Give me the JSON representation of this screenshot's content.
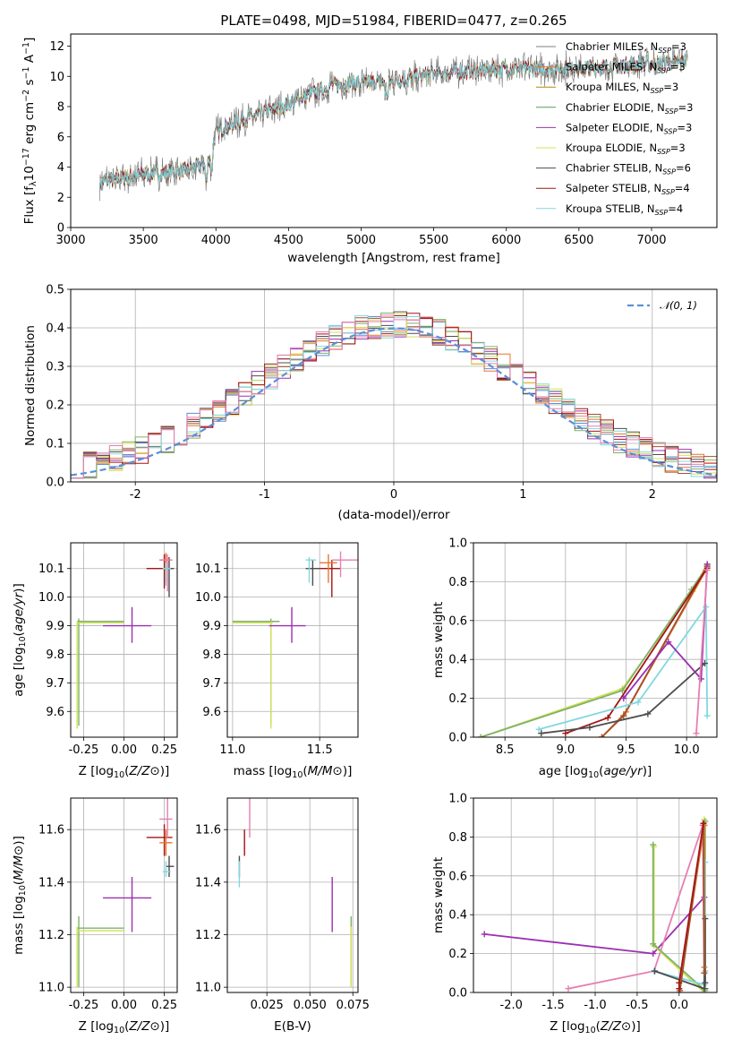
{
  "title": "PLATE=0498, MJD=51984, FIBERID=0477, z=0.265",
  "series": [
    {
      "name": "Chabrier MILES",
      "nssp": "3",
      "color": "#7f7f7f"
    },
    {
      "name": "Salpeter MILES",
      "nssp": "3",
      "color": "#e8772e"
    },
    {
      "name": "Kroupa MILES",
      "nssp": "3",
      "color": "#b8860b"
    },
    {
      "name": "Chabrier ELODIE",
      "nssp": "3",
      "color": "#5a9a5a"
    },
    {
      "name": "Salpeter ELODIE",
      "nssp": "3",
      "color": "#9b30b0"
    },
    {
      "name": "Kroupa ELODIE",
      "nssp": "3",
      "color": "#d4e157"
    },
    {
      "name": "Chabrier STELIB",
      "nssp": "6",
      "color": "#4d4d4d"
    },
    {
      "name": "Salpeter STELIB",
      "nssp": "4",
      "color": "#a31515"
    },
    {
      "name": "Kroupa STELIB",
      "nssp": "4",
      "color": "#80d8e0"
    }
  ],
  "chart_data": [
    {
      "type": "line",
      "id": "spectrum",
      "title": "PLATE=0498, MJD=51984, FIBERID=0477, z=0.265",
      "xlabel": "wavelength [Angstrom, rest frame]",
      "ylabel": "Flux [f_λ 10^-17 erg cm^-2 s^-1 A^-1]",
      "xlim": [
        3000,
        7450
      ],
      "ylim": [
        0,
        12.8
      ],
      "xticks": [
        3000,
        3500,
        4000,
        4500,
        5000,
        5500,
        6000,
        6500,
        7000
      ],
      "yticks": [
        0,
        2,
        4,
        6,
        8,
        10,
        12
      ],
      "legend": "top-right",
      "grid": false,
      "continuum": {
        "x": [
          3200,
          3500,
          3800,
          3950,
          4000,
          4200,
          4400,
          4600,
          4800,
          5000,
          5200,
          5500,
          5800,
          6000,
          6300,
          6600,
          6900,
          7250
        ],
        "y": [
          3.0,
          3.5,
          3.8,
          4.3,
          6.3,
          7.2,
          7.8,
          8.6,
          9.4,
          9.6,
          9.6,
          10.2,
          10.4,
          10.5,
          10.5,
          10.6,
          10.8,
          11.0
        ]
      }
    },
    {
      "type": "histogram",
      "id": "residuals",
      "xlabel": "(data-model)/error",
      "ylabel": "Normed distribution",
      "xlim": [
        -2.5,
        2.5
      ],
      "ylim": [
        0,
        0.5
      ],
      "xticks": [
        -2,
        -1,
        0,
        1,
        2
      ],
      "yticks": [
        0.0,
        0.1,
        0.2,
        0.3,
        0.4,
        0.5
      ],
      "bin_width": 0.1,
      "grid": true,
      "legend": "top-right",
      "reference_label": "𝒩(0, 1)",
      "reference_color": "#5b8fd9",
      "hist_colors": [
        "#5b8fd9",
        "#e8772e",
        "#7fb26a",
        "#a0522d",
        "#9b30b0",
        "#4d4d4d",
        "#d4e157",
        "#a31515",
        "#80d8e0",
        "#e67fb2"
      ]
    },
    {
      "type": "scatter",
      "id": "age-vs-Z",
      "xlabel": "Z [log10(Z/Z⊙)]",
      "ylabel": "age [log10(age/yr)]",
      "xlim": [
        -0.33,
        0.33
      ],
      "ylim": [
        9.51,
        10.19
      ],
      "xticks": [
        -0.25,
        0.0,
        0.25
      ],
      "yticks": [
        9.6,
        9.7,
        9.8,
        9.9,
        10.0,
        10.1
      ],
      "grid": true,
      "points": [
        {
          "x": -0.28,
          "xlo": -0.29,
          "xhi": 0.0,
          "y": 9.915,
          "ylo": 9.55,
          "yhi": 9.925,
          "color": "#7fb26a"
        },
        {
          "x": -0.29,
          "xlo": -0.29,
          "xhi": 0.0,
          "y": 9.91,
          "ylo": 9.54,
          "yhi": 9.915,
          "color": "#d4e157"
        },
        {
          "x": 0.05,
          "xlo": -0.13,
          "xhi": 0.17,
          "y": 9.9,
          "ylo": 9.84,
          "yhi": 9.965,
          "color": "#9b30b0"
        },
        {
          "x": 0.25,
          "xlo": 0.14,
          "xhi": 0.3,
          "y": 10.1,
          "ylo": 10.03,
          "yhi": 10.15,
          "color": "#a31515"
        },
        {
          "x": 0.26,
          "xlo": 0.22,
          "xhi": 0.3,
          "y": 10.13,
          "ylo": 10.05,
          "yhi": 10.155,
          "color": "#e8772e"
        },
        {
          "x": 0.28,
          "xlo": 0.26,
          "xhi": 0.31,
          "y": 10.1,
          "ylo": 10.0,
          "yhi": 10.14,
          "color": "#4d4d4d"
        },
        {
          "x": 0.27,
          "xlo": 0.22,
          "xhi": 0.3,
          "y": 10.13,
          "ylo": 10.02,
          "yhi": 10.15,
          "color": "#e67fb2"
        },
        {
          "x": 0.26,
          "xlo": 0.24,
          "xhi": 0.29,
          "y": 10.1,
          "ylo": 10.04,
          "yhi": 10.12,
          "color": "#80d8e0"
        }
      ]
    },
    {
      "type": "scatter",
      "id": "age-vs-mass",
      "xlabel": "mass [log10(M/M⊙)]",
      "ylabel": "",
      "xlim": [
        10.97,
        11.72
      ],
      "ylim": [
        9.51,
        10.19
      ],
      "xticks": [
        11.0,
        11.5
      ],
      "yticks": [
        9.6,
        9.7,
        9.8,
        9.9,
        10.0,
        10.1
      ],
      "grid": true,
      "points": [
        {
          "x": 11.22,
          "xlo": 11.0,
          "xhi": 11.27,
          "y": 9.915,
          "ylo": 9.55,
          "yhi": 9.925,
          "color": "#7fb26a"
        },
        {
          "x": 11.22,
          "xlo": 11.0,
          "xhi": 11.23,
          "y": 9.91,
          "ylo": 9.54,
          "yhi": 9.915,
          "color": "#d4e157"
        },
        {
          "x": 11.34,
          "xlo": 11.21,
          "xhi": 11.42,
          "y": 9.9,
          "ylo": 9.84,
          "yhi": 9.965,
          "color": "#9b30b0"
        },
        {
          "x": 11.57,
          "xlo": 11.5,
          "xhi": 11.62,
          "y": 10.1,
          "ylo": 10.0,
          "yhi": 10.13,
          "color": "#a31515"
        },
        {
          "x": 11.55,
          "xlo": 11.5,
          "xhi": 11.6,
          "y": 10.12,
          "ylo": 10.05,
          "yhi": 10.15,
          "color": "#e8772e"
        },
        {
          "x": 11.46,
          "xlo": 11.42,
          "xhi": 11.5,
          "y": 10.1,
          "ylo": 10.04,
          "yhi": 10.13,
          "color": "#4d4d4d"
        },
        {
          "x": 11.62,
          "xlo": 11.57,
          "xhi": 11.72,
          "y": 10.13,
          "ylo": 10.07,
          "yhi": 10.16,
          "color": "#e67fb2"
        },
        {
          "x": 11.44,
          "xlo": 11.42,
          "xhi": 11.48,
          "y": 10.13,
          "ylo": 10.05,
          "yhi": 10.14,
          "color": "#80d8e0"
        }
      ]
    },
    {
      "type": "line",
      "id": "weight-vs-age",
      "xlabel": "age  [log10(age/yr)]",
      "ylabel": "mass weight",
      "xlim": [
        8.24,
        10.25
      ],
      "ylim": [
        0,
        1.0
      ],
      "xticks": [
        8.5,
        9.0,
        9.5,
        10.0
      ],
      "yticks": [
        0.0,
        0.2,
        0.4,
        0.6,
        0.8,
        1.0
      ],
      "grid": true,
      "lines": [
        {
          "color": "#d4e157",
          "x": [
            8.3,
            9.47,
            10.05,
            10.17
          ],
          "y": [
            0.0,
            0.25,
            0.75,
            0.89
          ]
        },
        {
          "color": "#7fb26a",
          "x": [
            8.3,
            9.47,
            10.04,
            10.17
          ],
          "y": [
            0.0,
            0.24,
            0.76,
            0.88
          ]
        },
        {
          "color": "#e8772e",
          "x": [
            9.3,
            9.5,
            10.16
          ],
          "y": [
            0.0,
            0.13,
            0.86
          ]
        },
        {
          "color": "#a0522d",
          "x": [
            9.3,
            9.48,
            10.17
          ],
          "y": [
            0.0,
            0.11,
            0.88
          ]
        },
        {
          "color": "#a31515",
          "x": [
            9.0,
            9.35,
            10.17
          ],
          "y": [
            0.02,
            0.1,
            0.87
          ]
        },
        {
          "color": "#80d8e0",
          "x": [
            8.78,
            9.6,
            10.16,
            10.17
          ],
          "y": [
            0.04,
            0.18,
            0.67,
            0.11
          ]
        },
        {
          "color": "#4d4d4d",
          "x": [
            8.8,
            9.2,
            9.68,
            10.15
          ],
          "y": [
            0.02,
            0.05,
            0.12,
            0.38
          ]
        },
        {
          "color": "#9b30b0",
          "x": [
            9.48,
            9.85,
            10.12,
            10.17
          ],
          "y": [
            0.2,
            0.49,
            0.3,
            0.89
          ]
        },
        {
          "color": "#e67fb2",
          "x": [
            10.08,
            10.17
          ],
          "y": [
            0.02,
            0.86
          ]
        }
      ]
    },
    {
      "type": "scatter",
      "id": "mass-vs-Z",
      "xlabel": "Z [log10(Z/Z⊙)]",
      "ylabel": "mass [log10(M/M⊙)]",
      "xlim": [
        -0.33,
        0.33
      ],
      "ylim": [
        10.98,
        11.72
      ],
      "xticks": [
        -0.25,
        0.0,
        0.25
      ],
      "yticks": [
        11.0,
        11.2,
        11.4,
        11.6
      ],
      "grid": true,
      "points": [
        {
          "x": -0.28,
          "xlo": -0.29,
          "xhi": 0.0,
          "y": 11.225,
          "ylo": 11.0,
          "yhi": 11.27,
          "color": "#7fb26a"
        },
        {
          "x": -0.29,
          "xlo": -0.29,
          "xhi": 0.0,
          "y": 11.215,
          "ylo": 11.0,
          "yhi": 11.23,
          "color": "#d4e157"
        },
        {
          "x": 0.05,
          "xlo": -0.13,
          "xhi": 0.17,
          "y": 11.34,
          "ylo": 11.21,
          "yhi": 11.42,
          "color": "#9b30b0"
        },
        {
          "x": 0.25,
          "xlo": 0.14,
          "xhi": 0.3,
          "y": 11.57,
          "ylo": 11.5,
          "yhi": 11.62,
          "color": "#a31515"
        },
        {
          "x": 0.26,
          "xlo": 0.22,
          "xhi": 0.3,
          "y": 11.55,
          "ylo": 11.5,
          "yhi": 11.6,
          "color": "#e8772e"
        },
        {
          "x": 0.28,
          "xlo": 0.26,
          "xhi": 0.31,
          "y": 11.46,
          "ylo": 11.42,
          "yhi": 11.5,
          "color": "#4d4d4d"
        },
        {
          "x": 0.27,
          "xlo": 0.22,
          "xhi": 0.3,
          "y": 11.64,
          "ylo": 11.57,
          "yhi": 11.72,
          "color": "#e67fb2"
        },
        {
          "x": 0.26,
          "xlo": 0.24,
          "xhi": 0.29,
          "y": 11.44,
          "ylo": 11.42,
          "yhi": 11.48,
          "color": "#80d8e0"
        }
      ]
    },
    {
      "type": "scatter",
      "id": "mass-vs-ebv",
      "xlabel": "E(B-V)",
      "ylabel": "",
      "xlim": [
        0.002,
        0.078
      ],
      "ylim": [
        10.98,
        11.72
      ],
      "xticks": [
        0.025,
        0.05,
        0.075
      ],
      "xticklabels": [
        "0.025",
        "0.050",
        "0.075"
      ],
      "yticks": [
        11.0,
        11.2,
        11.4,
        11.6
      ],
      "grid": true,
      "points": [
        {
          "x": 0.074,
          "y": 11.22,
          "ylo": 11.0,
          "yhi": 11.27,
          "color": "#7fb26a"
        },
        {
          "x": 0.074,
          "y": 11.215,
          "ylo": 11.0,
          "yhi": 11.23,
          "color": "#d4e157"
        },
        {
          "x": 0.063,
          "y": 11.34,
          "ylo": 11.21,
          "yhi": 11.42,
          "color": "#9b30b0"
        },
        {
          "x": 0.012,
          "y": 11.55,
          "ylo": 11.5,
          "yhi": 11.6,
          "color": "#a31515"
        },
        {
          "x": 0.015,
          "y": 11.64,
          "ylo": 11.57,
          "yhi": 11.72,
          "color": "#e67fb2"
        },
        {
          "x": 0.009,
          "y": 11.46,
          "ylo": 11.42,
          "yhi": 11.5,
          "color": "#4d4d4d"
        },
        {
          "x": 0.009,
          "y": 11.44,
          "ylo": 11.38,
          "yhi": 11.48,
          "color": "#80d8e0"
        }
      ]
    },
    {
      "type": "line",
      "id": "weight-vs-Z",
      "xlabel": "Z [log10(Z/Z⊙)]",
      "ylabel": "mass weight",
      "xlim": [
        -2.45,
        0.45
      ],
      "ylim": [
        0,
        1.0
      ],
      "xticks": [
        -2.0,
        -1.5,
        -1.0,
        -0.5,
        0.0
      ],
      "yticks": [
        0.0,
        0.2,
        0.4,
        0.6,
        0.8,
        1.0
      ],
      "grid": true,
      "lines": [
        {
          "color": "#9b30b0",
          "x": [
            -2.32,
            -0.31,
            0.3,
            0.31
          ],
          "y": [
            0.3,
            0.2,
            0.49,
            0.02
          ]
        },
        {
          "color": "#e67fb2",
          "x": [
            -1.32,
            -0.3,
            0.28,
            0.3
          ],
          "y": [
            0.02,
            0.11,
            0.86,
            0.02
          ]
        },
        {
          "color": "#d4e157",
          "x": [
            -0.3,
            -0.3,
            0.3,
            0.3
          ],
          "y": [
            0.75,
            0.24,
            0.0,
            0.89
          ]
        },
        {
          "color": "#7fb26a",
          "x": [
            -0.31,
            -0.31,
            0.31,
            0.31
          ],
          "y": [
            0.76,
            0.25,
            0.01,
            0.88
          ]
        },
        {
          "color": "#80d8e0",
          "x": [
            -0.3,
            0.3,
            0.31,
            0.31
          ],
          "y": [
            0.11,
            0.04,
            0.67,
            0.11
          ]
        },
        {
          "color": "#4d4d4d",
          "x": [
            -0.29,
            0.3,
            0.31,
            0.31
          ],
          "y": [
            0.11,
            0.02,
            0.38,
            0.05
          ]
        },
        {
          "color": "#e8772e",
          "x": [
            0.0,
            0.3,
            0.3
          ],
          "y": [
            0.0,
            0.86,
            0.13
          ]
        },
        {
          "color": "#a0522d",
          "x": [
            0.01,
            0.29,
            0.3
          ],
          "y": [
            0.01,
            0.87,
            0.1
          ]
        },
        {
          "color": "#a31515",
          "x": [
            0.0,
            0.0,
            0.29
          ],
          "y": [
            0.02,
            0.05,
            0.87
          ]
        }
      ]
    }
  ]
}
